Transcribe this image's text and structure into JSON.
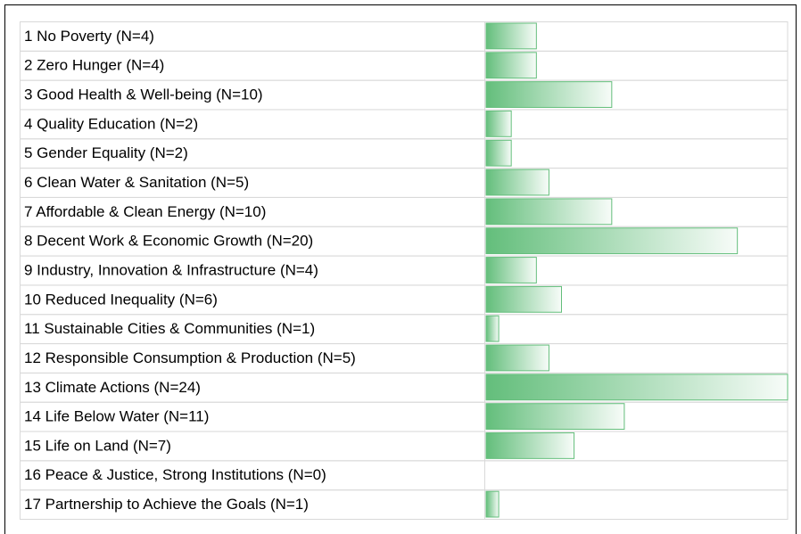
{
  "chart_data": {
    "type": "bar",
    "orientation": "horizontal",
    "color": "#63be7b",
    "categories": [
      "1 No Poverty (N=4)",
      "2 Zero Hunger (N=4)",
      "3 Good Health & Well-being (N=10)",
      "4 Quality Education (N=2)",
      "5 Gender Equality (N=2)",
      "6 Clean Water & Sanitation (N=5)",
      "7 Affordable & Clean Energy (N=10)",
      "8 Decent Work & Economic Growth (N=20)",
      "9 Industry, Innovation & Infrastructure (N=4)",
      "10 Reduced Inequality (N=6)",
      "11 Sustainable Cities & Communities (N=1)",
      "12 Responsible Consumption & Production (N=5)",
      "13 Climate Actions (N=24)",
      "14 Life Below Water (N=11)",
      "15 Life on Land (N=7)",
      "16 Peace & Justice, Strong Institutions (N=0)",
      "17 Partnership to Achieve the Goals (N=1)"
    ],
    "values": [
      4,
      4,
      10,
      2,
      2,
      5,
      10,
      20,
      4,
      6,
      1,
      5,
      24,
      11,
      7,
      0,
      1
    ]
  }
}
